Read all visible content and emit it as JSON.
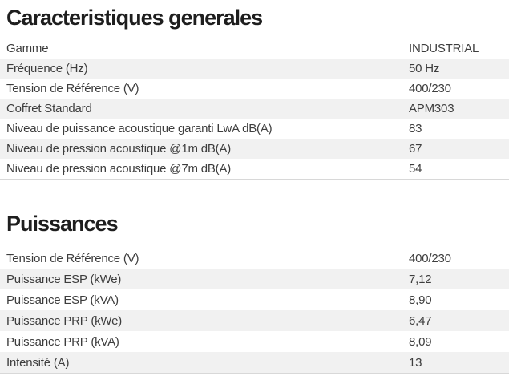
{
  "colors": {
    "stripe": "#f1f1f1",
    "row_text": "#3d3d3d",
    "title_text": "#1e1e1e",
    "table_border": "#d8d8d8",
    "background": "#ffffff"
  },
  "sections": [
    {
      "title": "Caracteristiques generales",
      "rows": [
        {
          "label": "Gamme",
          "value": "INDUSTRIAL"
        },
        {
          "label": "Fréquence (Hz)",
          "value": "50 Hz"
        },
        {
          "label": "Tension de Référence (V)",
          "value": "400/230"
        },
        {
          "label": "Coffret Standard",
          "value": "APM303"
        },
        {
          "label": "Niveau de puissance acoustique garanti LwA dB(A)",
          "value": "83"
        },
        {
          "label": "Niveau de pression acoustique @1m dB(A)",
          "value": "67"
        },
        {
          "label": "Niveau de pression acoustique @7m dB(A)",
          "value": "54"
        }
      ]
    },
    {
      "title": "Puissances",
      "rows": [
        {
          "label": "Tension de Référence (V)",
          "value": "400/230"
        },
        {
          "label": "Puissance ESP (kWe)",
          "value": "7,12"
        },
        {
          "label": "Puissance ESP (kVA)",
          "value": "8,90"
        },
        {
          "label": "Puissance PRP (kWe)",
          "value": "6,47"
        },
        {
          "label": "Puissance PRP (kVA)",
          "value": "8,09"
        },
        {
          "label": "Intensité (A)",
          "value": "13"
        }
      ]
    }
  ]
}
